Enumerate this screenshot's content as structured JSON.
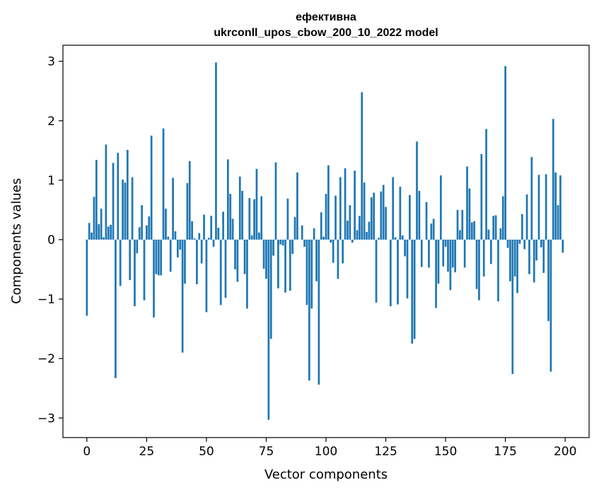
{
  "chart_data": {
    "type": "bar",
    "title": "ефективна",
    "subtitle": "ukrconll_upos_cbow_200_10_2022 model",
    "xlabel": "Vector components",
    "ylabel": "Components values",
    "xlim": [
      -10,
      210
    ],
    "ylim": [
      -3.33,
      3.27
    ],
    "xticks": [
      0,
      25,
      50,
      75,
      100,
      125,
      150,
      175,
      200
    ],
    "yticks": [
      -3,
      -2,
      -1,
      0,
      1,
      2,
      3
    ],
    "xtick_labels": [
      "0",
      "25",
      "50",
      "75",
      "100",
      "125",
      "150",
      "175",
      "200"
    ],
    "ytick_labels": [
      "−3",
      "−2",
      "−1",
      "0",
      "1",
      "2",
      "3"
    ],
    "color": "#1f77b4",
    "grid": false,
    "x_start": 0,
    "values": [
      -1.28,
      0.28,
      0.12,
      0.72,
      1.34,
      0.26,
      0.52,
      0.04,
      1.6,
      0.22,
      0.25,
      1.29,
      -2.33,
      1.46,
      -0.78,
      1.01,
      0.96,
      1.51,
      -0.68,
      1.05,
      -1.12,
      -0.23,
      0.21,
      0.58,
      -1.02,
      0.24,
      0.39,
      1.75,
      -1.31,
      -0.58,
      -0.6,
      -0.6,
      1.87,
      0.52,
      0.05,
      -0.54,
      1.04,
      0.14,
      -0.3,
      -0.17,
      -1.9,
      -0.74,
      0.95,
      1.32,
      0.31,
      0.02,
      -0.75,
      0.11,
      -0.4,
      0.42,
      -1.22,
      0.03,
      0.4,
      -0.12,
      2.98,
      0.2,
      -1.1,
      0.47,
      -0.98,
      1.35,
      0.77,
      0.35,
      -0.5,
      -0.71,
      1.06,
      0.82,
      -0.58,
      -1.16,
      0.7,
      0.07,
      0.68,
      1.19,
      0.12,
      0.73,
      -0.49,
      -0.66,
      -3.03,
      -1.67,
      -0.27,
      1.3,
      -0.82,
      -0.08,
      -0.1,
      -0.89,
      0.69,
      -0.86,
      -0.24,
      0.38,
      1.13,
      0.0,
      0.24,
      -0.12,
      -1.1,
      -2.37,
      -1.16,
      0.19,
      -0.7,
      -2.44,
      0.46,
      0.05,
      0.77,
      1.25,
      -0.05,
      -0.39,
      0.74,
      -0.66,
      1.05,
      -0.4,
      1.2,
      0.32,
      0.58,
      -0.05,
      1.16,
      0.16,
      0.4,
      2.48,
      0.96,
      0.13,
      0.3,
      0.71,
      0.79,
      -1.06,
      0.03,
      0.81,
      0.92,
      0.55,
      0.0,
      -1.12,
      1.05,
      0.04,
      -1.09,
      0.89,
      0.07,
      -0.28,
      -0.99,
      0.75,
      -1.75,
      -1.67,
      1.65,
      0.82,
      -0.46,
      0.0,
      0.63,
      -0.47,
      0.27,
      0.35,
      -1.15,
      -0.74,
      1.08,
      -0.45,
      -0.12,
      -0.54,
      -0.85,
      -0.47,
      -0.55,
      0.5,
      0.16,
      0.5,
      -0.47,
      1.23,
      0.86,
      0.29,
      0.31,
      -0.83,
      -1.02,
      1.44,
      -0.62,
      1.86,
      0.17,
      -0.41,
      0.4,
      0.41,
      -1.04,
      0.19,
      0.73,
      2.92,
      -0.14,
      -0.7,
      -2.26,
      -0.62,
      -0.9,
      -0.07,
      0.43,
      -0.16,
      0.76,
      -0.58,
      1.39,
      -0.72,
      -0.35,
      1.09,
      -0.13,
      -0.56,
      1.1,
      -1.37,
      -2.22,
      2.03,
      1.13,
      0.58,
      1.08,
      -0.22
    ]
  }
}
